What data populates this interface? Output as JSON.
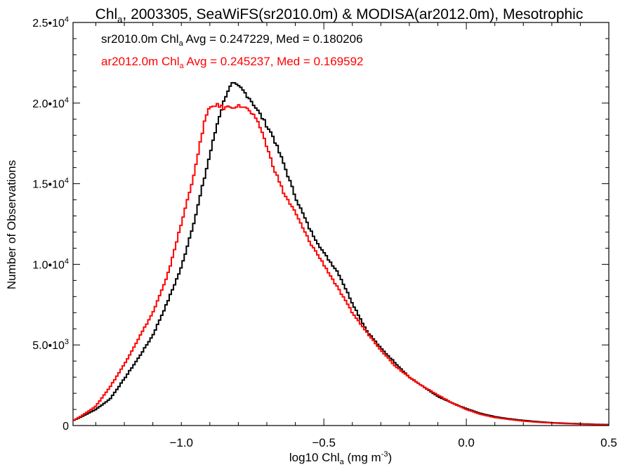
{
  "chart_data": {
    "type": "line",
    "title": {
      "prefix": "Chl",
      "sub": "a",
      "suffix": ", 2003305, SeaWiFS(sr2010.0m) & MODISA(ar2012.0m), Mesotrophic"
    },
    "xlabel": {
      "prefix": "log10 Chl",
      "sub": "a",
      "suffix": " (mg m",
      "sup": "-3",
      "end": ")"
    },
    "ylabel": "Number of Observations",
    "xlim": [
      -1.38,
      0.5
    ],
    "ylim": [
      0,
      25000
    ],
    "x_ticks": [
      {
        "value": -1.0,
        "label": "−1.0"
      },
      {
        "value": -0.5,
        "label": "−0.5"
      },
      {
        "value": 0.0,
        "label": "0.0"
      },
      {
        "value": 0.5,
        "label": "0.5"
      }
    ],
    "y_ticks": [
      {
        "value": 0,
        "mant": "0",
        "exp": ""
      },
      {
        "value": 5000,
        "mant": "5.0•10",
        "exp": "3"
      },
      {
        "value": 10000,
        "mant": "1.0•10",
        "exp": "4"
      },
      {
        "value": 15000,
        "mant": "1.5•10",
        "exp": "4"
      },
      {
        "value": 20000,
        "mant": "2.0•10",
        "exp": "4"
      },
      {
        "value": 25000,
        "mant": "2.5•10",
        "exp": "4"
      }
    ],
    "legend_position": "top-left",
    "series": [
      {
        "name": "sr2010.0m",
        "color": "#000000",
        "legend": {
          "prefix": "sr2010.0m Chl",
          "sub": "a",
          "suffix": " Avg = 0.247229, Med = 0.180206"
        },
        "points": [
          [
            -1.38,
            300
          ],
          [
            -1.35,
            550
          ],
          [
            -1.3,
            1000
          ],
          [
            -1.25,
            1650
          ],
          [
            -1.2,
            2900
          ],
          [
            -1.15,
            4200
          ],
          [
            -1.1,
            5600
          ],
          [
            -1.05,
            7600
          ],
          [
            -1.0,
            9800
          ],
          [
            -0.95,
            13000
          ],
          [
            -0.9,
            16800
          ],
          [
            -0.87,
            19000
          ],
          [
            -0.84,
            20700
          ],
          [
            -0.82,
            21200
          ],
          [
            -0.79,
            20900
          ],
          [
            -0.76,
            20300
          ],
          [
            -0.72,
            19200
          ],
          [
            -0.68,
            18000
          ],
          [
            -0.64,
            16200
          ],
          [
            -0.6,
            14200
          ],
          [
            -0.55,
            12200
          ],
          [
            -0.5,
            10700
          ],
          [
            -0.45,
            9500
          ],
          [
            -0.4,
            7600
          ],
          [
            -0.35,
            5900
          ],
          [
            -0.3,
            4800
          ],
          [
            -0.25,
            3900
          ],
          [
            -0.2,
            3000
          ],
          [
            -0.15,
            2400
          ],
          [
            -0.1,
            1800
          ],
          [
            -0.05,
            1400
          ],
          [
            0.0,
            1050
          ],
          [
            0.05,
            750
          ],
          [
            0.1,
            550
          ],
          [
            0.15,
            420
          ],
          [
            0.2,
            320
          ],
          [
            0.25,
            240
          ],
          [
            0.3,
            180
          ],
          [
            0.35,
            140
          ],
          [
            0.4,
            110
          ],
          [
            0.45,
            80
          ],
          [
            0.5,
            60
          ]
        ]
      },
      {
        "name": "ar2012.0m",
        "color": "#ff0000",
        "legend": {
          "prefix": "ar2012.0m Chl",
          "sub": "a",
          "suffix": " Avg = 0.245237, Med = 0.169592"
        },
        "points": [
          [
            -1.38,
            300
          ],
          [
            -1.35,
            600
          ],
          [
            -1.3,
            1200
          ],
          [
            -1.25,
            2400
          ],
          [
            -1.2,
            3800
          ],
          [
            -1.15,
            5400
          ],
          [
            -1.1,
            7000
          ],
          [
            -1.05,
            9200
          ],
          [
            -1.0,
            12500
          ],
          [
            -0.95,
            16000
          ],
          [
            -0.92,
            18800
          ],
          [
            -0.9,
            19700
          ],
          [
            -0.88,
            19900
          ],
          [
            -0.85,
            19700
          ],
          [
            -0.82,
            19800
          ],
          [
            -0.78,
            19800
          ],
          [
            -0.75,
            19300
          ],
          [
            -0.72,
            18400
          ],
          [
            -0.68,
            16200
          ],
          [
            -0.64,
            14400
          ],
          [
            -0.6,
            13200
          ],
          [
            -0.55,
            11400
          ],
          [
            -0.5,
            10000
          ],
          [
            -0.45,
            8500
          ],
          [
            -0.4,
            7000
          ],
          [
            -0.35,
            5800
          ],
          [
            -0.3,
            4700
          ],
          [
            -0.25,
            3700
          ],
          [
            -0.2,
            3000
          ],
          [
            -0.15,
            2400
          ],
          [
            -0.1,
            1900
          ],
          [
            -0.05,
            1400
          ],
          [
            0.0,
            1000
          ],
          [
            0.05,
            700
          ],
          [
            0.1,
            500
          ],
          [
            0.15,
            380
          ],
          [
            0.2,
            280
          ],
          [
            0.25,
            210
          ],
          [
            0.3,
            160
          ],
          [
            0.35,
            120
          ],
          [
            0.4,
            90
          ],
          [
            0.45,
            65
          ],
          [
            0.5,
            45
          ]
        ]
      }
    ]
  }
}
